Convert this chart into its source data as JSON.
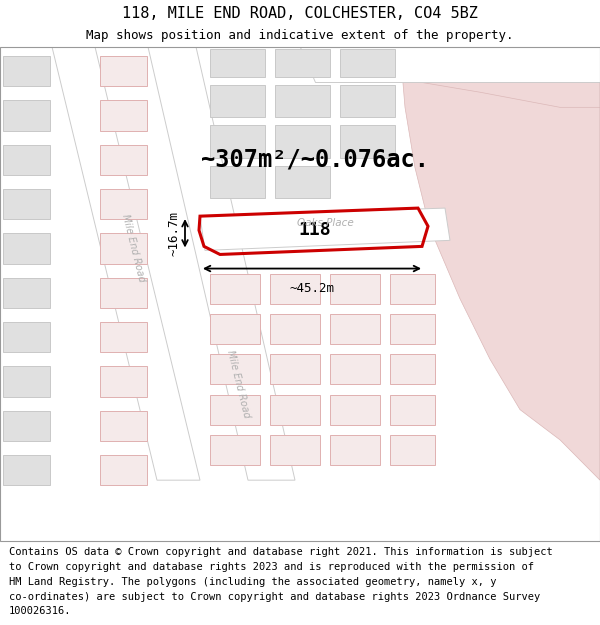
{
  "title": "118, MILE END ROAD, COLCHESTER, CO4 5BZ",
  "subtitle": "Map shows position and indicative extent of the property.",
  "footer_lines": [
    "Contains OS data © Crown copyright and database right 2021. This information is subject",
    "to Crown copyright and database rights 2023 and is reproduced with the permission of",
    "HM Land Registry. The polygons (including the associated geometry, namely x, y",
    "co-ordinates) are subject to Crown copyright and database rights 2023 Ordnance Survey",
    "100026316."
  ],
  "area_label": "~307m²/~0.076ac.",
  "width_label": "~45.2m",
  "height_label": "~16.7m",
  "road_label_mile_end_1": "Mile End Road",
  "road_label_mile_end_2": "Mile End Road",
  "road_label_oaks": "Oaks Place",
  "number_label": "118",
  "bg_map_color": "#ede8e8",
  "pink_zone": "#f0d8d8",
  "pink_zone_stroke": "#dbb8b8",
  "block_gray": "#e0e0e0",
  "block_gray_stroke": "#c8c8c8",
  "block_pink_fill": "#f5eaea",
  "block_pink_stroke": "#e0b0b0",
  "road_color": "#ffffff",
  "road_stroke": "#cccccc",
  "plot_stroke": "#cc0000",
  "dim_color": "#000000",
  "road_text_color": "#b0b0b0",
  "title_fs": 11,
  "subtitle_fs": 9,
  "footer_fs": 7.5,
  "area_fs": 17,
  "label_fs": 9,
  "number_fs": 13
}
